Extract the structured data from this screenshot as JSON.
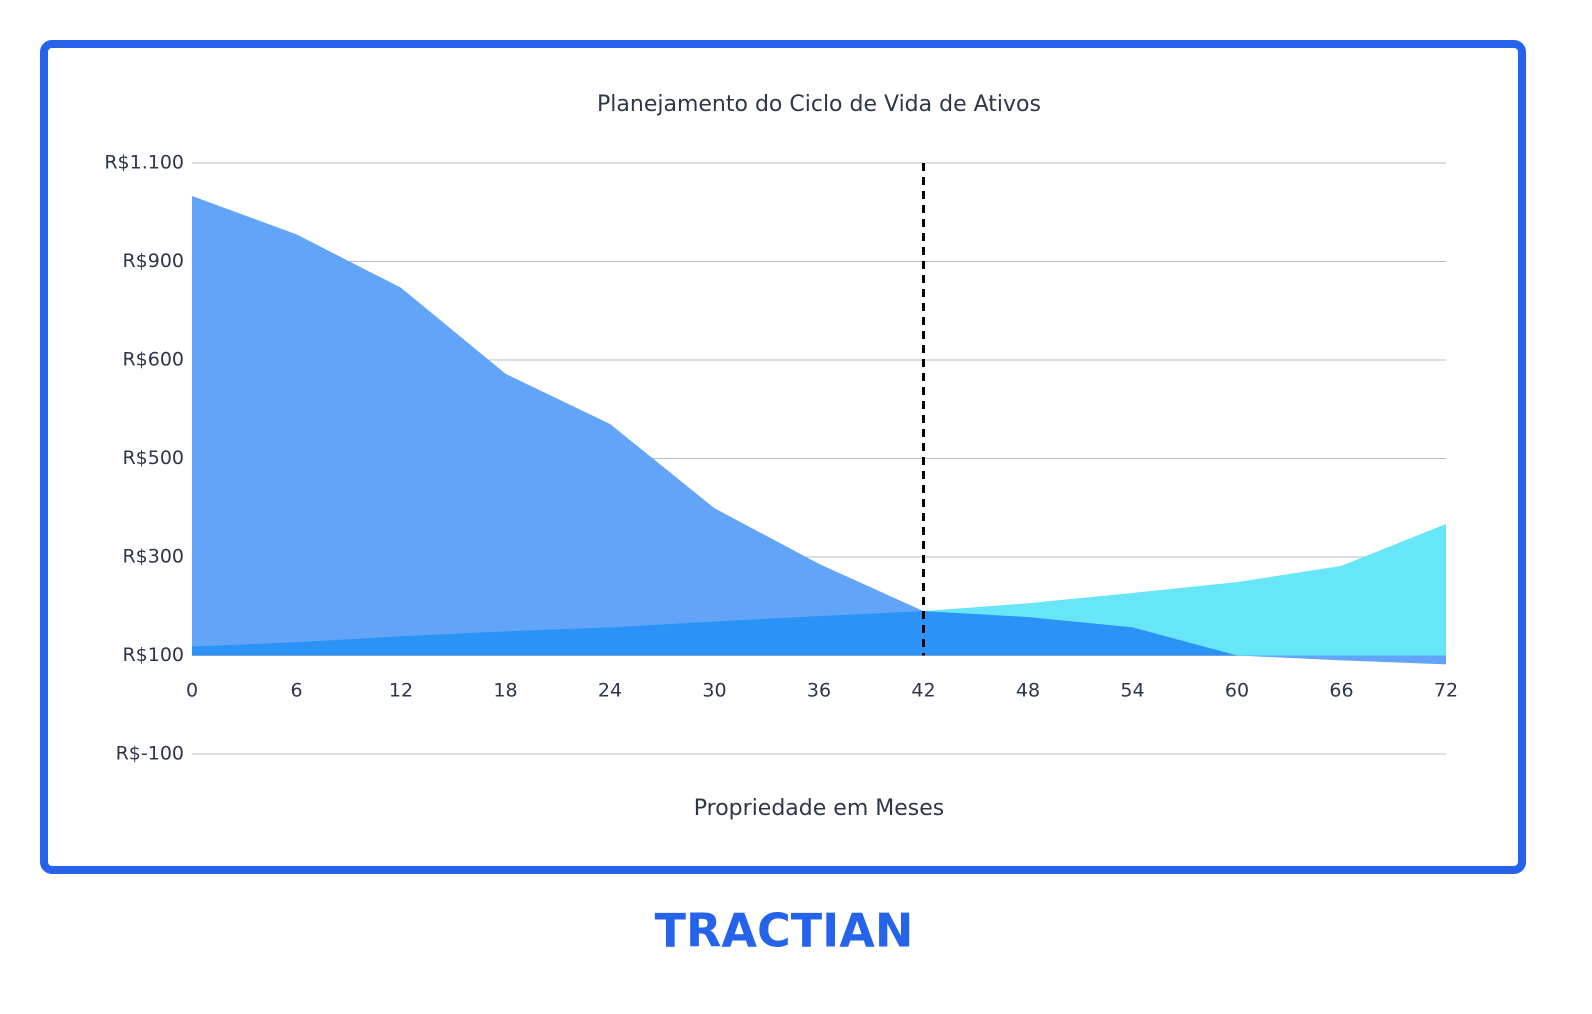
{
  "chart_data": {
    "type": "area",
    "title": "Planejamento do Ciclo de Vida de Ativos",
    "x_label": "Propriedade em Meses",
    "x": [
      0,
      6,
      12,
      18,
      24,
      30,
      36,
      42,
      48,
      54,
      60,
      66,
      72
    ],
    "xlim": [
      0,
      72
    ],
    "xticks": [
      0,
      6,
      12,
      18,
      24,
      30,
      36,
      42,
      48,
      54,
      60,
      66,
      72
    ],
    "ylim": [
      -100,
      1100
    ],
    "yticks": [
      {
        "value": -100,
        "label": "R$-100"
      },
      {
        "value": 100,
        "label": "R$100"
      },
      {
        "value": 300,
        "label": "R$300"
      },
      {
        "value": 500,
        "label": "R$500"
      },
      {
        "value": 600,
        "label": "R$600"
      },
      {
        "value": 900,
        "label": "R$900"
      },
      {
        "value": 1100,
        "label": "R$1.100"
      }
    ],
    "grid": true,
    "baseline": 100,
    "vline": 42,
    "overlap_color": "#2a93f5",
    "series": [
      {
        "color": "#66e6f6",
        "values": [
          118,
          127,
          139,
          149,
          157,
          169,
          180,
          190,
          206,
          227,
          249,
          282,
          367
        ]
      },
      {
        "color": "#62a4f8",
        "values": [
          1033,
          955,
          820,
          586,
          535,
          399,
          286,
          190,
          178,
          157,
          100,
          90,
          82
        ]
      }
    ]
  },
  "brand": "TRACTIAN"
}
